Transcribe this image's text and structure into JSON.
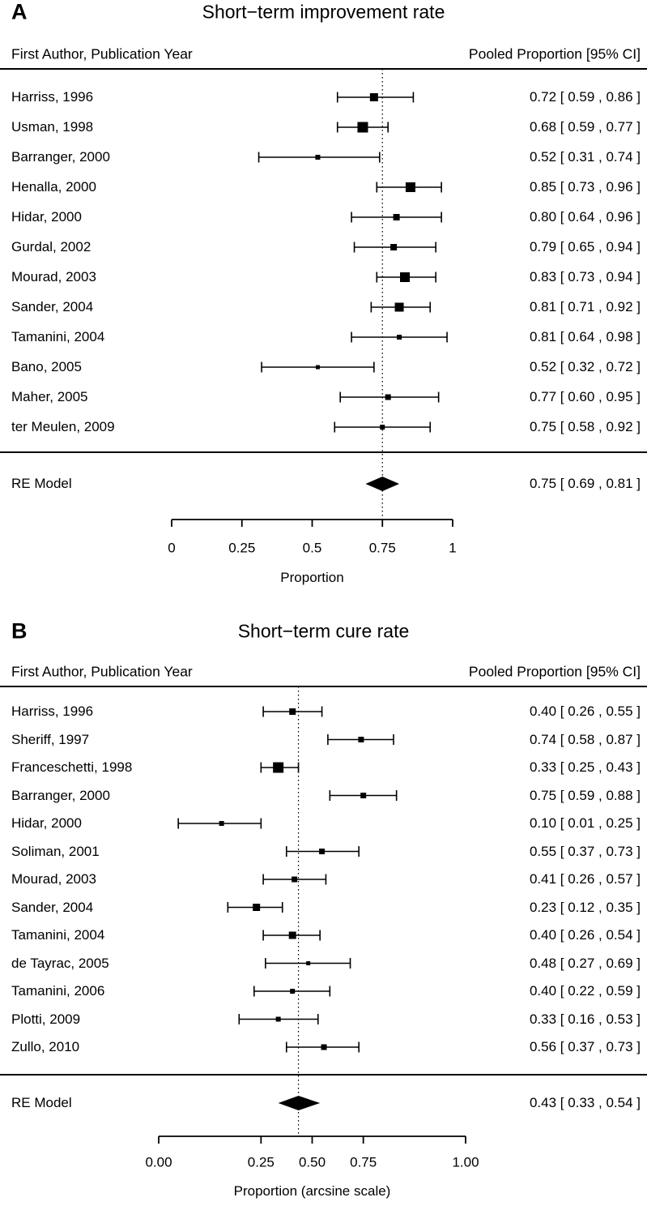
{
  "chart_data": [
    {
      "type": "forest",
      "panel_label": "A",
      "title": "Short−term improvement rate",
      "col_header_left": "First Author, Publication Year",
      "col_header_right": "Pooled Proportion [95% CI]",
      "studies": [
        {
          "label": "Harriss, 1996",
          "est": 0.72,
          "lo": 0.59,
          "hi": 0.86,
          "ci_text": "0.72 [ 0.59 , 0.86 ]",
          "weight_size": 10
        },
        {
          "label": "Usman, 1998",
          "est": 0.68,
          "lo": 0.59,
          "hi": 0.77,
          "ci_text": "0.68 [ 0.59 , 0.77 ]",
          "weight_size": 13
        },
        {
          "label": "Barranger, 2000",
          "est": 0.52,
          "lo": 0.31,
          "hi": 0.74,
          "ci_text": "0.52 [ 0.31 , 0.74 ]",
          "weight_size": 6
        },
        {
          "label": "Henalla, 2000",
          "est": 0.85,
          "lo": 0.73,
          "hi": 0.96,
          "ci_text": "0.85 [ 0.73 , 0.96 ]",
          "weight_size": 12
        },
        {
          "label": "Hidar, 2000",
          "est": 0.8,
          "lo": 0.64,
          "hi": 0.96,
          "ci_text": "0.80 [ 0.64 , 0.96 ]",
          "weight_size": 8
        },
        {
          "label": "Gurdal, 2002",
          "est": 0.79,
          "lo": 0.65,
          "hi": 0.94,
          "ci_text": "0.79 [ 0.65 , 0.94 ]",
          "weight_size": 8
        },
        {
          "label": "Mourad, 2003",
          "est": 0.83,
          "lo": 0.73,
          "hi": 0.94,
          "ci_text": "0.83 [ 0.73 , 0.94 ]",
          "weight_size": 12
        },
        {
          "label": "Sander, 2004",
          "est": 0.81,
          "lo": 0.71,
          "hi": 0.92,
          "ci_text": "0.81 [ 0.71 , 0.92 ]",
          "weight_size": 11
        },
        {
          "label": "Tamanini, 2004",
          "est": 0.81,
          "lo": 0.64,
          "hi": 0.98,
          "ci_text": "0.81 [ 0.64 , 0.98 ]",
          "weight_size": 6
        },
        {
          "label": "Bano, 2005",
          "est": 0.52,
          "lo": 0.32,
          "hi": 0.72,
          "ci_text": "0.52 [ 0.32 , 0.72 ]",
          "weight_size": 5
        },
        {
          "label": "Maher, 2005",
          "est": 0.77,
          "lo": 0.6,
          "hi": 0.95,
          "ci_text": "0.77 [ 0.60 , 0.95 ]",
          "weight_size": 7
        },
        {
          "label": "ter Meulen, 2009",
          "est": 0.75,
          "lo": 0.58,
          "hi": 0.92,
          "ci_text": "0.75 [ 0.58 , 0.92 ]",
          "weight_size": 6
        }
      ],
      "re_model": {
        "label": "RE Model",
        "est": 0.75,
        "lo": 0.69,
        "hi": 0.81,
        "ci_text": "0.75 [ 0.69 , 0.81 ]"
      },
      "axis": {
        "xlabel": "Proportion",
        "transform": "linear",
        "range": [
          0,
          1
        ],
        "tick_values": [
          0,
          0.25,
          0.5,
          0.75,
          1
        ],
        "tick_labels": [
          "0",
          "0.25",
          "0.5",
          "0.75",
          "1"
        ]
      }
    },
    {
      "type": "forest",
      "panel_label": "B",
      "title": "Short−term cure rate",
      "col_header_left": "First Author, Publication Year",
      "col_header_right": "Pooled Proportion [95% CI]",
      "studies": [
        {
          "label": "Harriss, 1996",
          "est": 0.4,
          "lo": 0.26,
          "hi": 0.55,
          "ci_text": "0.40 [ 0.26 , 0.55 ]",
          "weight_size": 8
        },
        {
          "label": "Sheriff, 1997",
          "est": 0.74,
          "lo": 0.58,
          "hi": 0.87,
          "ci_text": "0.74 [ 0.58 , 0.87 ]",
          "weight_size": 7
        },
        {
          "label": "Franceschetti, 1998",
          "est": 0.33,
          "lo": 0.25,
          "hi": 0.43,
          "ci_text": "0.33 [ 0.25 , 0.43 ]",
          "weight_size": 13
        },
        {
          "label": "Barranger, 2000",
          "est": 0.75,
          "lo": 0.59,
          "hi": 0.88,
          "ci_text": "0.75 [ 0.59 , 0.88 ]",
          "weight_size": 7
        },
        {
          "label": "Hidar, 2000",
          "est": 0.1,
          "lo": 0.01,
          "hi": 0.25,
          "ci_text": "0.10 [ 0.01 , 0.25 ]",
          "weight_size": 6
        },
        {
          "label": "Soliman, 2001",
          "est": 0.55,
          "lo": 0.37,
          "hi": 0.73,
          "ci_text": "0.55 [ 0.37 , 0.73 ]",
          "weight_size": 7
        },
        {
          "label": "Mourad, 2003",
          "est": 0.41,
          "lo": 0.26,
          "hi": 0.57,
          "ci_text": "0.41 [ 0.26 , 0.57 ]",
          "weight_size": 7
        },
        {
          "label": "Sander, 2004",
          "est": 0.23,
          "lo": 0.12,
          "hi": 0.35,
          "ci_text": "0.23 [ 0.12 , 0.35 ]",
          "weight_size": 9
        },
        {
          "label": "Tamanini, 2004",
          "est": 0.4,
          "lo": 0.26,
          "hi": 0.54,
          "ci_text": "0.40 [ 0.26 , 0.54 ]",
          "weight_size": 9
        },
        {
          "label": "de Tayrac, 2005",
          "est": 0.48,
          "lo": 0.27,
          "hi": 0.69,
          "ci_text": "0.48 [ 0.27 , 0.69 ]",
          "weight_size": 5
        },
        {
          "label": "Tamanini, 2006",
          "est": 0.4,
          "lo": 0.22,
          "hi": 0.59,
          "ci_text": "0.40 [ 0.22 , 0.59 ]",
          "weight_size": 6
        },
        {
          "label": "Plotti, 2009",
          "est": 0.33,
          "lo": 0.16,
          "hi": 0.53,
          "ci_text": "0.33 [ 0.16 , 0.53 ]",
          "weight_size": 6
        },
        {
          "label": "Zullo, 2010",
          "est": 0.56,
          "lo": 0.37,
          "hi": 0.73,
          "ci_text": "0.56 [ 0.37 , 0.73 ]",
          "weight_size": 7
        }
      ],
      "re_model": {
        "label": "RE Model",
        "est": 0.43,
        "lo": 0.33,
        "hi": 0.54,
        "ci_text": "0.43 [ 0.33 , 0.54 ]"
      },
      "axis": {
        "xlabel": "Proportion (arcsine scale)",
        "transform": "arcsine",
        "range": [
          0,
          1
        ],
        "tick_values": [
          0,
          0.25,
          0.5,
          0.75,
          1
        ],
        "tick_labels": [
          "0.00",
          "0.25",
          "0.50",
          "0.75",
          "1.00"
        ]
      }
    }
  ]
}
